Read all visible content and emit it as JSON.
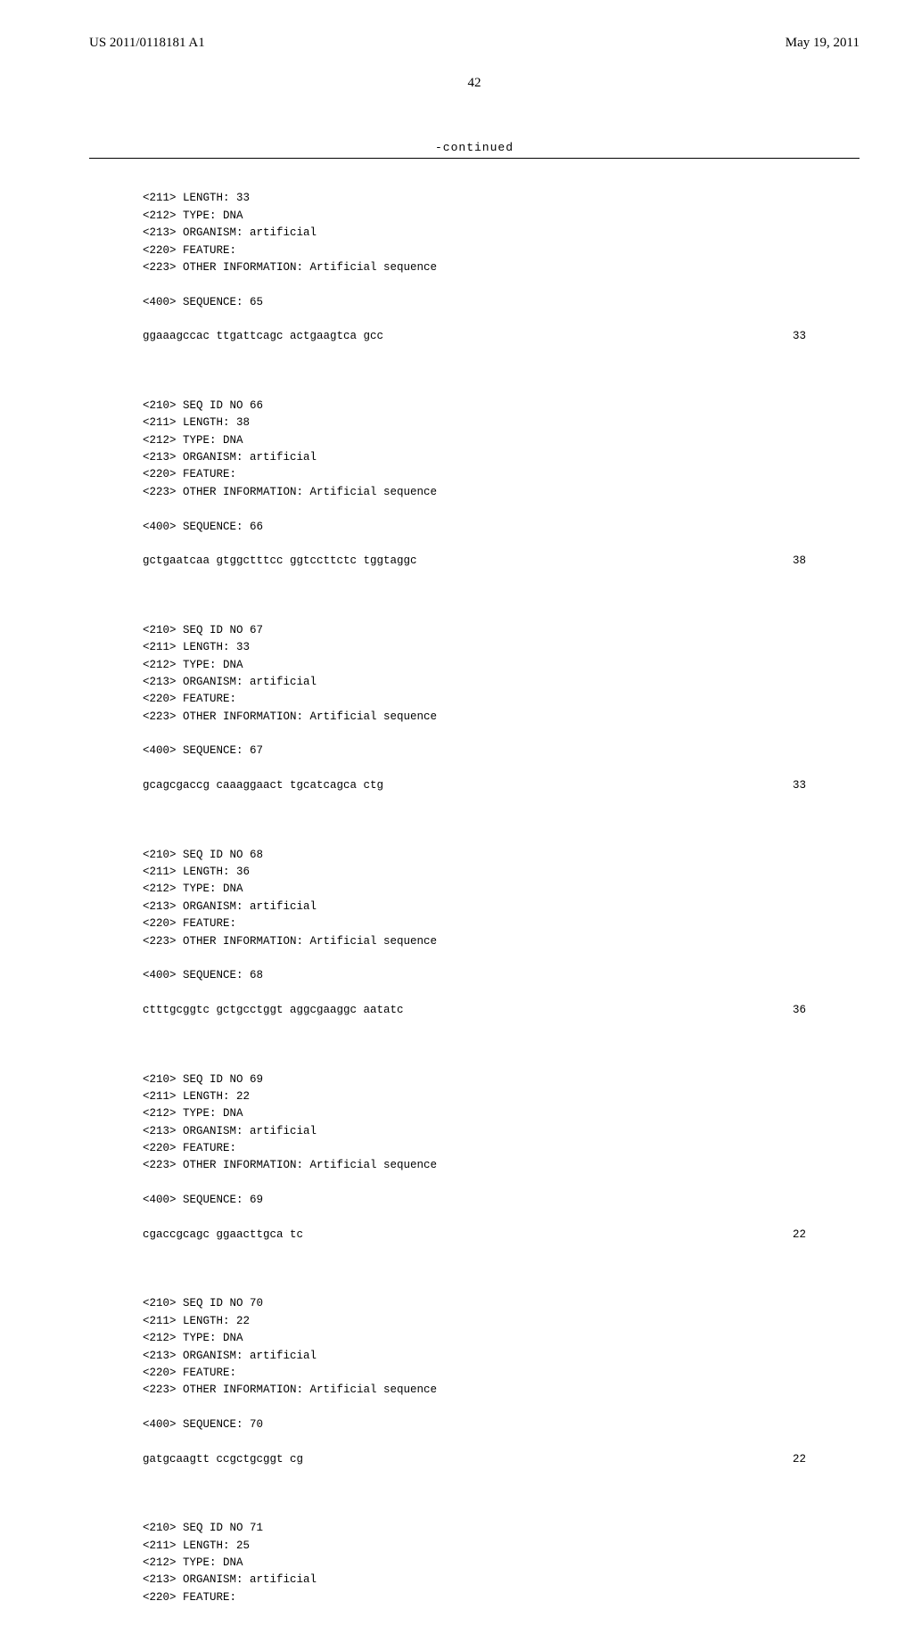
{
  "header": {
    "pub_number": "US 2011/0118181 A1",
    "pub_date": "May 19, 2011"
  },
  "page_number": "42",
  "continued_label": "-continued",
  "lead_in": {
    "lines": [
      "<211> LENGTH: 33",
      "<212> TYPE: DNA",
      "<213> ORGANISM: artificial",
      "<220> FEATURE:",
      "<223> OTHER INFORMATION: Artificial sequence"
    ],
    "seq_label": "<400> SEQUENCE: 65",
    "sequence": "ggaaagccac ttgattcagc actgaagtca gcc",
    "seq_len": "33"
  },
  "entries": [
    {
      "header_lines": [
        "<210> SEQ ID NO 66",
        "<211> LENGTH: 38",
        "<212> TYPE: DNA",
        "<213> ORGANISM: artificial",
        "<220> FEATURE:",
        "<223> OTHER INFORMATION: Artificial sequence"
      ],
      "seq_label": "<400> SEQUENCE: 66",
      "sequence": "gctgaatcaa gtggctttcc ggtccttctc tggtaggc",
      "seq_len": "38"
    },
    {
      "header_lines": [
        "<210> SEQ ID NO 67",
        "<211> LENGTH: 33",
        "<212> TYPE: DNA",
        "<213> ORGANISM: artificial",
        "<220> FEATURE:",
        "<223> OTHER INFORMATION: Artificial sequence"
      ],
      "seq_label": "<400> SEQUENCE: 67",
      "sequence": "gcagcgaccg caaaggaact tgcatcagca ctg",
      "seq_len": "33"
    },
    {
      "header_lines": [
        "<210> SEQ ID NO 68",
        "<211> LENGTH: 36",
        "<212> TYPE: DNA",
        "<213> ORGANISM: artificial",
        "<220> FEATURE:",
        "<223> OTHER INFORMATION: Artificial sequence"
      ],
      "seq_label": "<400> SEQUENCE: 68",
      "sequence": "ctttgcggtc gctgcctggt aggcgaaggc aatatc",
      "seq_len": "36"
    },
    {
      "header_lines": [
        "<210> SEQ ID NO 69",
        "<211> LENGTH: 22",
        "<212> TYPE: DNA",
        "<213> ORGANISM: artificial",
        "<220> FEATURE:",
        "<223> OTHER INFORMATION: Artificial sequence"
      ],
      "seq_label": "<400> SEQUENCE: 69",
      "sequence": "cgaccgcagc ggaacttgca tc",
      "seq_len": "22"
    },
    {
      "header_lines": [
        "<210> SEQ ID NO 70",
        "<211> LENGTH: 22",
        "<212> TYPE: DNA",
        "<213> ORGANISM: artificial",
        "<220> FEATURE:",
        "<223> OTHER INFORMATION: Artificial sequence"
      ],
      "seq_label": "<400> SEQUENCE: 70",
      "sequence": "gatgcaagtt ccgctgcggt cg",
      "seq_len": "22"
    }
  ],
  "tail": {
    "lines": [
      "<210> SEQ ID NO 71",
      "<211> LENGTH: 25",
      "<212> TYPE: DNA",
      "<213> ORGANISM: artificial",
      "<220> FEATURE:"
    ]
  }
}
